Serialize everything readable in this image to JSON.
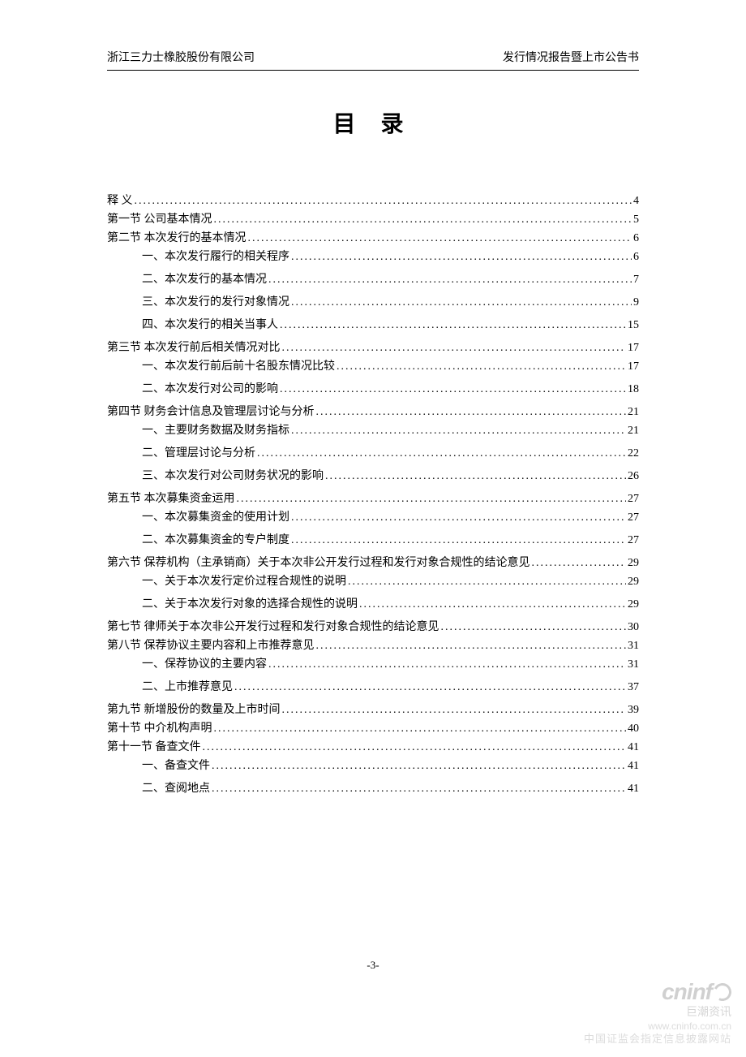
{
  "header": {
    "left": "浙江三力士橡胶股份有限公司",
    "right": "发行情况报告暨上市公告书"
  },
  "title": "目 录",
  "page_number": "-3-",
  "watermark": {
    "brand_en": "cninf",
    "brand_cn": "巨潮资讯",
    "url": "www.cninfo.com.cn",
    "desc": "中国证监会指定信息披露网站"
  },
  "colors": {
    "text": "#000000",
    "background": "#ffffff",
    "watermark": "#d6d6d6",
    "rule": "#000000"
  },
  "typography": {
    "body_font": "SimSun",
    "body_size_pt": 10.5,
    "title_size_pt": 22,
    "title_weight": "bold"
  },
  "toc": [
    {
      "level": 0,
      "label": "释    义",
      "page": "4"
    },
    {
      "level": 0,
      "label": "第一节  公司基本情况",
      "page": "5"
    },
    {
      "level": 0,
      "label": "第二节  本次发行的基本情况",
      "page": "6"
    },
    {
      "level": 1,
      "label": "一、本次发行履行的相关程序",
      "page": "6"
    },
    {
      "level": 1,
      "label": "二、本次发行的基本情况",
      "page": "7"
    },
    {
      "level": 1,
      "label": "三、本次发行的发行对象情况",
      "page": "9"
    },
    {
      "level": 1,
      "label": "四、本次发行的相关当事人",
      "page": "15"
    },
    {
      "level": 0,
      "label": "第三节 本次发行前后相关情况对比",
      "page": "17"
    },
    {
      "level": 1,
      "label": "一、本次发行前后前十名股东情况比较",
      "page": "17"
    },
    {
      "level": 1,
      "label": "二、本次发行对公司的影响",
      "page": "18"
    },
    {
      "level": 0,
      "label": "第四节  财务会计信息及管理层讨论与分析",
      "page": "21"
    },
    {
      "level": 1,
      "label": "一、主要财务数据及财务指标",
      "page": "21"
    },
    {
      "level": 1,
      "label": "二、管理层讨论与分析",
      "page": "22"
    },
    {
      "level": 1,
      "label": "三、本次发行对公司财务状况的影响",
      "page": "26"
    },
    {
      "level": 0,
      "label": "第五节  本次募集资金运用",
      "page": "27"
    },
    {
      "level": 1,
      "label": "一、本次募集资金的使用计划",
      "page": "27"
    },
    {
      "level": 1,
      "label": "二、本次募集资金的专户制度",
      "page": "27"
    },
    {
      "level": 0,
      "label": "第六节  保荐机构（主承销商）关于本次非公开发行过程和发行对象合规性的结论意见",
      "page": "29"
    },
    {
      "level": 1,
      "label": "一、关于本次发行定价过程合规性的说明",
      "page": "29"
    },
    {
      "level": 1,
      "label": "二、关于本次发行对象的选择合规性的说明",
      "page": "29"
    },
    {
      "level": 0,
      "label": "第七节  律师关于本次非公开发行过程和发行对象合规性的结论意见",
      "page": "30"
    },
    {
      "level": 0,
      "label": "第八节  保荐协议主要内容和上市推荐意见",
      "page": "31"
    },
    {
      "level": 1,
      "label": "一、保荐协议的主要内容",
      "page": "31"
    },
    {
      "level": 1,
      "label": "二、上市推荐意见",
      "page": "37"
    },
    {
      "level": 0,
      "label": "第九节    新增股份的数量及上市时间",
      "page": "39"
    },
    {
      "level": 0,
      "label": "第十节    中介机构声明",
      "page": "40"
    },
    {
      "level": 0,
      "label": "第十一节    备查文件",
      "page": "41"
    },
    {
      "level": 1,
      "label": "一、备查文件",
      "page": "41"
    },
    {
      "level": 1,
      "label": "二、查阅地点",
      "page": "41"
    }
  ]
}
